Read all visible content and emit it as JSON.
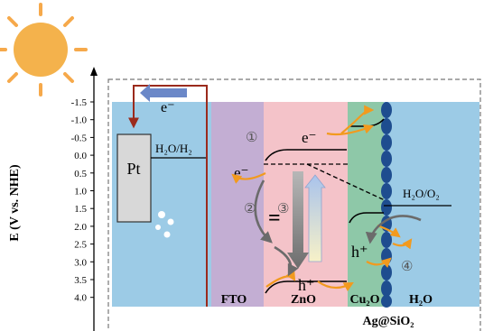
{
  "axis": {
    "title": "E (V vs. NHE)",
    "ticks": [
      "-1.5",
      "-1.0",
      "-0.5",
      "0.0",
      "0.5",
      "1.0",
      "1.5",
      "2.0",
      "2.5",
      "3.0",
      "3.5",
      "4.0"
    ]
  },
  "pt_electrode": {
    "label": "Pt",
    "redox": "H₂O/H₂"
  },
  "circuit": {
    "electron": "e⁻"
  },
  "layers": [
    {
      "id": "fto",
      "label": "FTO",
      "color": "#c3aed3"
    },
    {
      "id": "zno",
      "label": "ZnO",
      "color": "#f4c3c9"
    },
    {
      "id": "cu2o",
      "label": "Cu₂O",
      "color": "#8ec8a8"
    },
    {
      "id": "h2o",
      "label": "H₂O",
      "color": "#9ccbe6"
    }
  ],
  "electrolyte_color": "#9ccbe6",
  "shell_label": "Ag@SiO₂",
  "water_redox": "H₂O/O₂",
  "carriers": {
    "electron": "e⁻",
    "hole": "h⁺"
  },
  "steps": [
    "①",
    "②",
    "③",
    "④"
  ],
  "equilibrium_symbol": "="
}
